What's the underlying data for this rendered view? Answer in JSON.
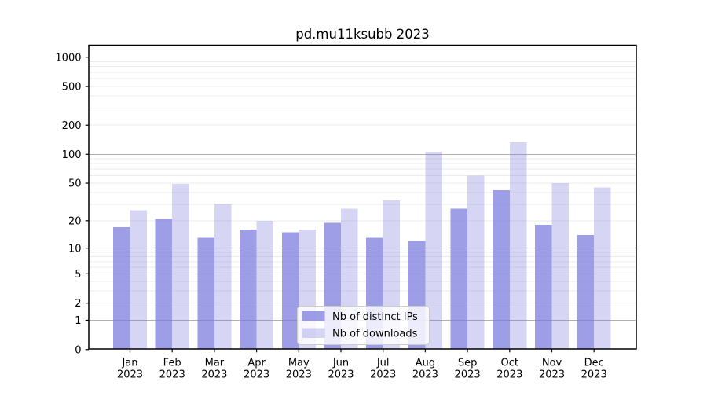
{
  "chart_data": {
    "type": "bar",
    "title": "pd.mu11ksubb 2023",
    "x_months": [
      "Jan",
      "Feb",
      "Mar",
      "Apr",
      "May",
      "Jun",
      "Jul",
      "Aug",
      "Sep",
      "Oct",
      "Nov",
      "Dec"
    ],
    "x_year": "2023",
    "series": [
      {
        "name": "Nb of distinct IPs",
        "color": "rgba(120,120,220,0.72)",
        "values": [
          17,
          21,
          13,
          16,
          15,
          19,
          13,
          12,
          27,
          42,
          18,
          14
        ]
      },
      {
        "name": "Nb of downloads",
        "color": "rgba(120,120,220,0.30)",
        "values": [
          26,
          49,
          30,
          20,
          16,
          27,
          33,
          105,
          60,
          133,
          50,
          45
        ]
      }
    ],
    "y_scale": "log1p",
    "y_ticks": [
      0,
      1,
      2,
      5,
      10,
      20,
      50,
      100,
      200,
      500,
      1000
    ],
    "y_major_gridlines": [
      1,
      10,
      100,
      1000
    ],
    "y_minor_gridlines": [
      2,
      3,
      4,
      5,
      6,
      7,
      8,
      9,
      20,
      30,
      40,
      50,
      60,
      70,
      80,
      90,
      200,
      300,
      400,
      500,
      600,
      700,
      800,
      900
    ],
    "ylim": [
      0,
      1330
    ],
    "grid": true,
    "legend_position": "lower center",
    "colors": {
      "bar_base": "#7878dc",
      "major_grid": "#b0b0b0",
      "minor_grid": "#ebebeb",
      "spine": "#000000"
    }
  }
}
